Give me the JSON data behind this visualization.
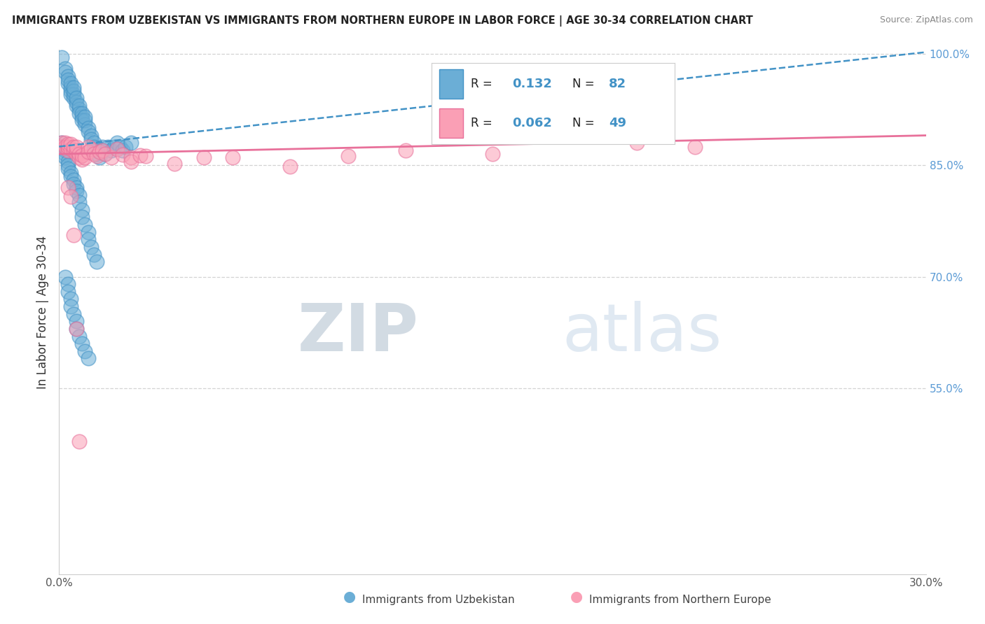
{
  "title": "IMMIGRANTS FROM UZBEKISTAN VS IMMIGRANTS FROM NORTHERN EUROPE IN LABOR FORCE | AGE 30-34 CORRELATION CHART",
  "source": "Source: ZipAtlas.com",
  "ylabel": "In Labor Force | Age 30-34",
  "xlim": [
    0.0,
    0.3
  ],
  "ylim": [
    0.3,
    1.005
  ],
  "blue_color": "#6baed6",
  "pink_color": "#fa9fb5",
  "blue_edge_color": "#4292c6",
  "pink_edge_color": "#e8709a",
  "blue_line_color": "#4292c6",
  "pink_line_color": "#e8709a",
  "R_blue": 0.132,
  "N_blue": 82,
  "R_pink": 0.062,
  "N_pink": 49,
  "watermark_zip": "ZIP",
  "watermark_atlas": "atlas",
  "grid_color": "#c8c8c8",
  "background_color": "#ffffff",
  "blue_x": [
    0.001,
    0.002,
    0.002,
    0.003,
    0.003,
    0.003,
    0.004,
    0.004,
    0.004,
    0.004,
    0.005,
    0.005,
    0.005,
    0.005,
    0.006,
    0.006,
    0.006,
    0.007,
    0.007,
    0.007,
    0.008,
    0.008,
    0.008,
    0.009,
    0.009,
    0.009,
    0.01,
    0.01,
    0.011,
    0.011,
    0.012,
    0.012,
    0.013,
    0.013,
    0.014,
    0.015,
    0.015,
    0.016,
    0.017,
    0.018,
    0.019,
    0.02,
    0.021,
    0.022,
    0.023,
    0.025,
    0.001,
    0.001,
    0.002,
    0.002,
    0.002,
    0.003,
    0.003,
    0.003,
    0.004,
    0.004,
    0.005,
    0.005,
    0.006,
    0.006,
    0.007,
    0.007,
    0.008,
    0.008,
    0.009,
    0.01,
    0.01,
    0.011,
    0.012,
    0.013,
    0.002,
    0.003,
    0.003,
    0.004,
    0.004,
    0.005,
    0.006,
    0.006,
    0.007,
    0.008,
    0.009,
    0.01
  ],
  "blue_y": [
    0.995,
    0.98,
    0.975,
    0.96,
    0.97,
    0.965,
    0.95,
    0.955,
    0.96,
    0.945,
    0.94,
    0.945,
    0.95,
    0.955,
    0.93,
    0.935,
    0.94,
    0.925,
    0.93,
    0.92,
    0.915,
    0.92,
    0.91,
    0.905,
    0.91,
    0.915,
    0.9,
    0.895,
    0.89,
    0.885,
    0.88,
    0.875,
    0.87,
    0.865,
    0.86,
    0.875,
    0.87,
    0.865,
    0.875,
    0.87,
    0.875,
    0.88,
    0.875,
    0.87,
    0.875,
    0.88,
    0.88,
    0.875,
    0.87,
    0.865,
    0.86,
    0.855,
    0.85,
    0.845,
    0.84,
    0.835,
    0.83,
    0.825,
    0.82,
    0.815,
    0.81,
    0.8,
    0.79,
    0.78,
    0.77,
    0.76,
    0.75,
    0.74,
    0.73,
    0.72,
    0.7,
    0.69,
    0.68,
    0.67,
    0.66,
    0.65,
    0.64,
    0.63,
    0.62,
    0.61,
    0.6,
    0.59
  ],
  "pink_x": [
    0.001,
    0.001,
    0.002,
    0.002,
    0.003,
    0.003,
    0.003,
    0.003,
    0.004,
    0.004,
    0.005,
    0.005,
    0.006,
    0.006,
    0.006,
    0.007,
    0.007,
    0.008,
    0.008,
    0.009,
    0.01,
    0.01,
    0.011,
    0.012,
    0.013,
    0.014,
    0.015,
    0.016,
    0.018,
    0.02,
    0.022,
    0.025,
    0.025,
    0.028,
    0.03,
    0.04,
    0.05,
    0.06,
    0.08,
    0.1,
    0.12,
    0.15,
    0.2,
    0.22,
    0.003,
    0.004,
    0.005,
    0.006,
    0.007
  ],
  "pink_y": [
    0.88,
    0.875,
    0.88,
    0.875,
    0.875,
    0.87,
    0.875,
    0.878,
    0.872,
    0.878,
    0.87,
    0.875,
    0.865,
    0.87,
    0.875,
    0.86,
    0.865,
    0.858,
    0.863,
    0.86,
    0.875,
    0.868,
    0.872,
    0.865,
    0.862,
    0.868,
    0.87,
    0.865,
    0.86,
    0.872,
    0.864,
    0.86,
    0.855,
    0.863,
    0.862,
    0.852,
    0.86,
    0.86,
    0.848,
    0.862,
    0.87,
    0.865,
    0.88,
    0.875,
    0.82,
    0.808,
    0.756,
    0.63,
    0.478
  ]
}
